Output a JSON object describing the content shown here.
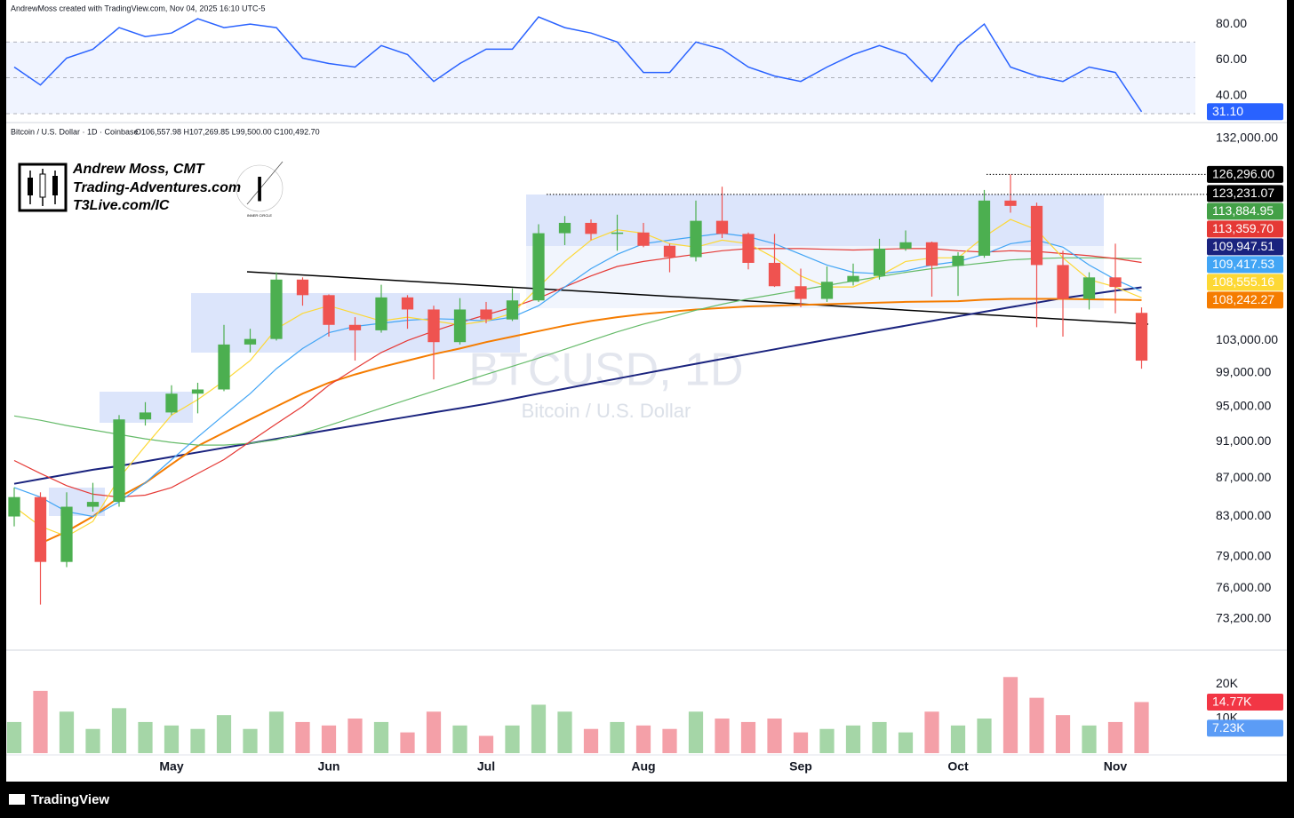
{
  "header": {
    "credit": "AndrewMoss created with TradingView.com, Nov 04, 2025 16:10 UTC-5"
  },
  "branding": {
    "name": "Andrew Moss, CMT",
    "site": "Trading-Adventures.com",
    "link": "T3Live.com/IC",
    "badge_letter": "I",
    "badge": "INNER CIRCLE"
  },
  "footer": {
    "logo": "TradingView"
  },
  "chart_data": [
    {
      "type": "line",
      "color": "#2962ff",
      "values": [
        56,
        46,
        61,
        66,
        78,
        73,
        75,
        83,
        78,
        80,
        78,
        61,
        58,
        56,
        68,
        63,
        48,
        58,
        66,
        66,
        84,
        78,
        75,
        70,
        53,
        53,
        70,
        66,
        56,
        51,
        48,
        56,
        63,
        68,
        63,
        48,
        68,
        80,
        56,
        51,
        48,
        56,
        53,
        31.1
      ],
      "ylim": [
        28.5,
        86.5
      ],
      "yticks": [
        {
          "value": 40,
          "label": "40.00"
        },
        {
          "value": 60,
          "label": "60.00"
        },
        {
          "value": 80,
          "label": "80.00"
        }
      ],
      "levels": [
        70,
        50,
        30
      ],
      "band_color": "#2962ff",
      "tags": [
        {
          "value": 31.1,
          "label": "31.10",
          "color": "#2962ff"
        }
      ]
    },
    {
      "type": "candlestick",
      "symbol": "Bitcoin / U.S. Dollar · 1D · Coinbase",
      "ohlc_text": "O106,557.98 H107,269.85 L99,500.00 C100,492.70",
      "watermark": "BTCUSD, 1D",
      "watermark_subtitle": "Bitcoin / U.S. Dollar",
      "log_scale": true,
      "ylim": [
        70600,
        134000
      ],
      "yticks": [
        {
          "value": 73200,
          "label": "73,200.00"
        },
        {
          "value": 76000,
          "label": "76,000.00"
        },
        {
          "value": 79000,
          "label": "79,000.00"
        },
        {
          "value": 83000,
          "label": "83,000.00"
        },
        {
          "value": 87000,
          "label": "87,000.00"
        },
        {
          "value": 91000,
          "label": "91,000.00"
        },
        {
          "value": 95000,
          "label": "95,000.00"
        },
        {
          "value": 99000,
          "label": "99,000.00"
        },
        {
          "value": 103000,
          "label": "103,000.00"
        },
        {
          "value": 132000,
          "label": "132,000.00"
        }
      ],
      "up_color": "#4caf50",
      "down_color": "#ef5350",
      "open": [
        83000,
        85000,
        78500,
        84000,
        84500,
        93500,
        94300,
        96500,
        97000,
        102500,
        103200,
        111000,
        108900,
        105000,
        104300,
        108600,
        107000,
        102800,
        107000,
        105700,
        108200,
        117500,
        119000,
        117400,
        117600,
        115700,
        114100,
        119300,
        117400,
        113300,
        110100,
        108400,
        110700,
        111500,
        115300,
        116200,
        112900,
        114300,
        122300,
        121500,
        113000,
        108400,
        111300,
        106557.98
      ],
      "high": [
        86000,
        85500,
        85500,
        86500,
        94000,
        95500,
        97500,
        97800,
        105000,
        104500,
        112000,
        111300,
        109000,
        106000,
        110300,
        108900,
        107500,
        108500,
        108000,
        109800,
        118800,
        120000,
        119500,
        120200,
        119000,
        116000,
        122300,
        124400,
        117600,
        117400,
        112500,
        112800,
        113200,
        116700,
        117900,
        116300,
        114800,
        123900,
        126296,
        122000,
        115000,
        112000,
        116000,
        107269.85
      ],
      "low": [
        82000,
        74500,
        78000,
        83500,
        84000,
        92800,
        94000,
        94200,
        96800,
        101500,
        103000,
        107500,
        103500,
        100500,
        104000,
        104500,
        98200,
        102500,
        105200,
        105500,
        108000,
        115800,
        116500,
        115000,
        115500,
        112000,
        113500,
        116800,
        112400,
        110000,
        107300,
        108000,
        110200,
        111000,
        115000,
        108700,
        108800,
        114000,
        120500,
        104700,
        103500,
        107000,
        106500,
        99500
      ],
      "close": [
        85000,
        78500,
        84000,
        84500,
        93500,
        94300,
        96500,
        97000,
        102500,
        103200,
        111000,
        108900,
        105000,
        104300,
        108600,
        107000,
        102800,
        107000,
        105700,
        108200,
        117500,
        119000,
        117400,
        117600,
        115700,
        114100,
        119300,
        117400,
        113300,
        110100,
        108400,
        110700,
        111500,
        115300,
        116200,
        112900,
        114300,
        122300,
        121500,
        113000,
        108400,
        111300,
        110000,
        100492.7
      ],
      "overlays": [
        {
          "color": "#1a237e",
          "values": [
            86400,
            86900,
            87400,
            87900,
            88300,
            88800,
            89300,
            89800,
            90300,
            90800,
            91300,
            91800,
            92300,
            92800,
            93300,
            93800,
            94300,
            94800,
            95300,
            95900,
            96500,
            97100,
            97700,
            98300,
            98900,
            99500,
            100100,
            100700,
            101300,
            101900,
            102500,
            103100,
            103700,
            104300,
            104900,
            105500,
            106100,
            106700,
            107300,
            107900,
            108500,
            109000,
            109500,
            109947.51
          ]
        },
        {
          "color": "#f57c00",
          "values": [
            null,
            80300,
            81500,
            83000,
            85000,
            86500,
            88500,
            90500,
            92000,
            93500,
            95000,
            96500,
            97800,
            98800,
            99700,
            100500,
            101300,
            102000,
            102800,
            103500,
            104200,
            104900,
            105500,
            106000,
            106400,
            106700,
            107000,
            107200,
            107400,
            107500,
            107600,
            107700,
            107800,
            107900,
            108000,
            108050,
            108100,
            108300,
            108400,
            108400,
            108400,
            108350,
            108300,
            108242.27
          ]
        },
        {
          "color": "#66bb6a",
          "values": [
            93900,
            93400,
            92800,
            92300,
            91800,
            91300,
            90900,
            90600,
            90600,
            90800,
            91200,
            91900,
            92800,
            93800,
            94800,
            95800,
            96800,
            97800,
            98800,
            99800,
            100800,
            101900,
            103000,
            104100,
            105100,
            106000,
            106900,
            107700,
            108400,
            109000,
            109600,
            110200,
            110800,
            111400,
            112000,
            112500,
            112900,
            113300,
            113700,
            113900,
            114000,
            114000,
            113950,
            113884.95
          ]
        },
        {
          "color": "#e53935",
          "values": [
            88900,
            87500,
            86200,
            85300,
            85000,
            85200,
            86000,
            87500,
            89000,
            91000,
            93000,
            95000,
            97500,
            99500,
            101500,
            103000,
            104200,
            105300,
            106300,
            107300,
            108500,
            110000,
            111500,
            112800,
            113500,
            114000,
            114500,
            115000,
            115300,
            115300,
            115300,
            115200,
            115100,
            115200,
            115300,
            115300,
            115000,
            114800,
            115000,
            114900,
            114600,
            114300,
            113900,
            113359.7
          ]
        },
        {
          "color": "#42a5f5",
          "values": [
            86000,
            85000,
            83500,
            83000,
            84500,
            86500,
            89000,
            91500,
            94000,
            96500,
            99500,
            102000,
            104000,
            104800,
            105200,
            105600,
            105800,
            105700,
            105500,
            106000,
            107500,
            110000,
            112500,
            114500,
            116000,
            116500,
            117000,
            117500,
            117000,
            116000,
            114500,
            113000,
            112000,
            111800,
            112200,
            113000,
            113500,
            114500,
            116000,
            116500,
            115500,
            113000,
            111000,
            109417.53
          ]
        },
        {
          "color": "#fdd835",
          "values": [
            84000,
            82000,
            81000,
            82500,
            87000,
            90500,
            94000,
            95800,
            98000,
            100500,
            104500,
            106500,
            107500,
            106500,
            105500,
            106000,
            105500,
            105000,
            105500,
            106500,
            110000,
            113500,
            116500,
            118000,
            117500,
            116000,
            115500,
            116500,
            116000,
            114000,
            111500,
            110000,
            110000,
            111500,
            113500,
            114000,
            114000,
            117000,
            119500,
            118000,
            114000,
            111000,
            110000,
            108555.16
          ]
        }
      ],
      "tags": [
        {
          "value": 126296,
          "label": "126,296.00",
          "color": "#000000",
          "line_style": "dotted"
        },
        {
          "value": 123231.07,
          "label": "123,231.07",
          "color": "#000000",
          "line_style": "dotted"
        },
        {
          "value": 113884.95,
          "label": "113,884.95",
          "color": "#43a047"
        },
        {
          "value": 113359.7,
          "label": "113,359.70",
          "color": "#e53935"
        },
        {
          "value": 109947.51,
          "label": "109,947.51",
          "color": "#1a237e"
        },
        {
          "value": 109417.53,
          "label": "109,417.53",
          "color": "#42a5f5"
        },
        {
          "value": 108555.16,
          "label": "108,555.16",
          "color": "#fdd835",
          "text_color": "#000000"
        },
        {
          "value": 108242.27,
          "label": "108,242.27",
          "color": "#f57c00"
        }
      ]
    },
    {
      "type": "bar",
      "categories": [
        null,
        null,
        null,
        null,
        null,
        null,
        "May",
        null,
        null,
        null,
        null,
        null,
        "Jun",
        null,
        null,
        null,
        null,
        null,
        "Jul",
        null,
        null,
        null,
        null,
        null,
        "Aug",
        null,
        null,
        null,
        null,
        null,
        "Sep",
        null,
        null,
        null,
        null,
        null,
        "Oct",
        null,
        null,
        null,
        null,
        null,
        "Nov",
        null
      ],
      "values": [
        9000,
        18000,
        12000,
        7000,
        13000,
        9000,
        8000,
        7000,
        11000,
        7000,
        12000,
        9000,
        8000,
        10000,
        9000,
        6000,
        12000,
        8000,
        5000,
        8000,
        14000,
        12000,
        7000,
        9000,
        8000,
        7000,
        12000,
        10000,
        9000,
        10000,
        6000,
        7000,
        8000,
        9000,
        6000,
        12000,
        8000,
        10000,
        22000,
        16000,
        11000,
        8000,
        9000,
        14770
      ],
      "ylim": [
        0,
        29000
      ],
      "yticks": [
        {
          "value": 10000,
          "label": "10K"
        },
        {
          "value": 20000,
          "label": "20K"
        }
      ],
      "up_color": "#a5d6a7",
      "down_color": "#f4a0a8",
      "tags": [
        {
          "value": 14770,
          "label": "14.77K",
          "color": "#f23645"
        },
        {
          "value": 7230,
          "label": "7.23K",
          "color": "#5b9cf6"
        }
      ]
    }
  ]
}
